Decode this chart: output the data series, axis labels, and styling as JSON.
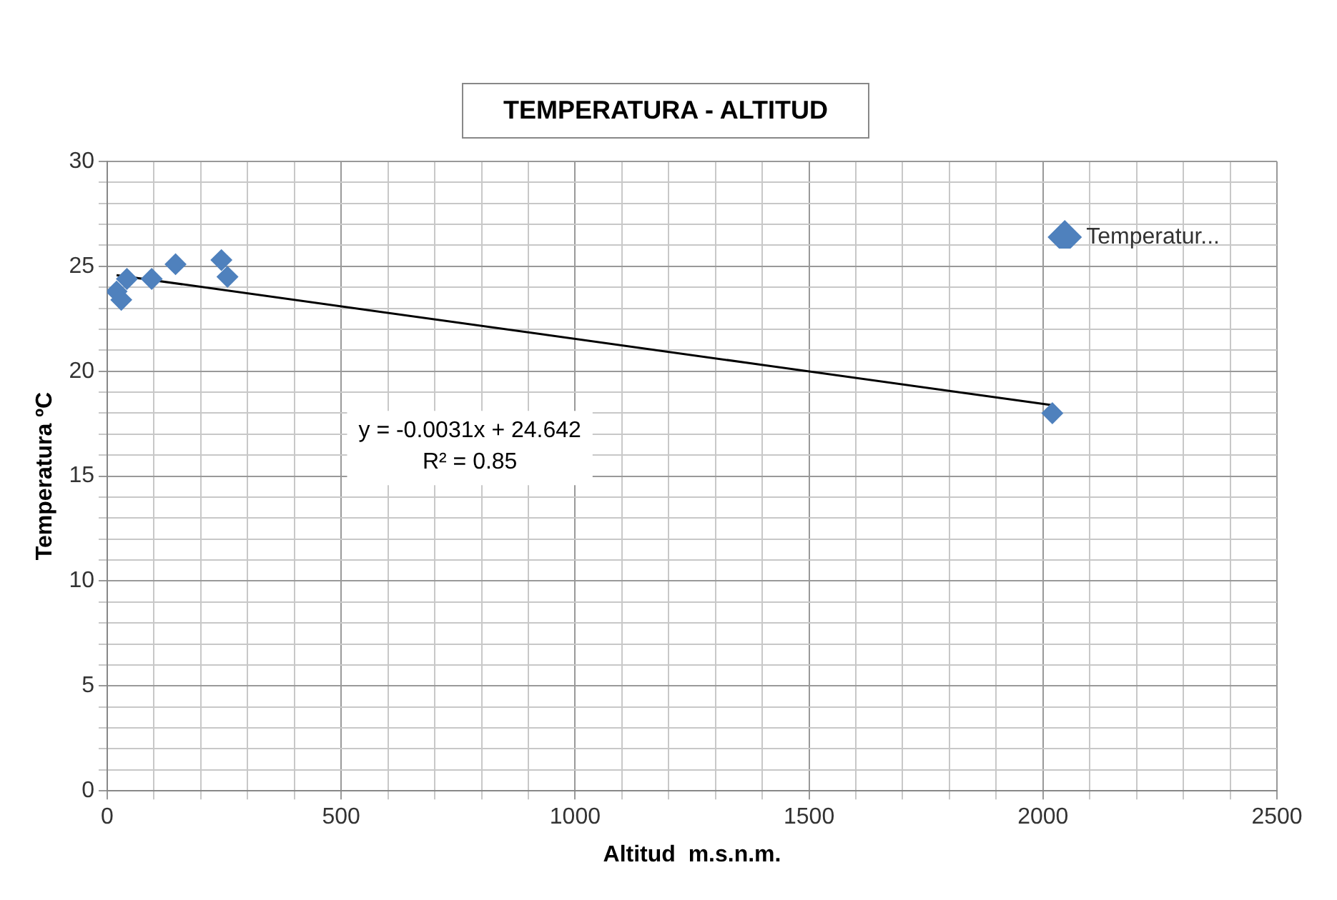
{
  "chart_data": {
    "type": "scatter",
    "title": "TEMPERATURA - ALTITUD",
    "xlabel": "Altitud  m.s.n.m.",
    "ylabel": "Temperatura ºC",
    "series": [
      {
        "name": "Temperatur...",
        "type": "scatter",
        "color": "#4f81bd",
        "x": [
          20,
          30,
          42,
          95,
          146,
          244,
          257,
          2020
        ],
        "values": [
          23.8,
          23.4,
          24.4,
          24.4,
          25.1,
          25.3,
          24.5,
          18.0
        ]
      },
      {
        "type": "line",
        "color": "#000000",
        "marker": "none",
        "x": [
          20,
          2020
        ],
        "values": [
          24.58,
          18.38
        ]
      }
    ],
    "annotations": [
      "y = -0.0031x + 24.642",
      "R² = 0.85"
    ],
    "xlim": [
      0,
      2500
    ],
    "ylim": [
      0,
      30
    ],
    "xticks": [
      0,
      {
        "value": 100,
        "label": null
      },
      {
        "value": 200,
        "label": null
      },
      {
        "value": 300,
        "label": null
      },
      {
        "value": 400,
        "label": null
      },
      500,
      {
        "value": 600,
        "label": null
      },
      {
        "value": 700,
        "label": null
      },
      {
        "value": 800,
        "label": null
      },
      {
        "value": 900,
        "label": null
      },
      1000,
      {
        "value": 1100,
        "label": null
      },
      {
        "value": 1200,
        "label": null
      },
      {
        "value": 1300,
        "label": null
      },
      {
        "value": 1400,
        "label": null
      },
      1500,
      {
        "value": 1600,
        "label": null
      },
      {
        "value": 1700,
        "label": null
      },
      {
        "value": 1800,
        "label": null
      },
      {
        "value": 1900,
        "label": null
      },
      2000,
      {
        "value": 2100,
        "label": null
      },
      {
        "value": 2200,
        "label": null
      },
      {
        "value": 2300,
        "label": null
      },
      {
        "value": 2400,
        "label": null
      },
      2500
    ],
    "yticks": [
      0,
      {
        "value": 1,
        "label": null
      },
      {
        "value": 2,
        "label": null
      },
      {
        "value": 3,
        "label": null
      },
      {
        "value": 4,
        "label": null
      },
      5,
      {
        "value": 6,
        "label": null
      },
      {
        "value": 7,
        "label": null
      },
      {
        "value": 8,
        "label": null
      },
      {
        "value": 9,
        "label": null
      },
      10,
      {
        "value": 11,
        "label": null
      },
      {
        "value": 12,
        "label": null
      },
      {
        "value": 13,
        "label": null
      },
      {
        "value": 14,
        "label": null
      },
      15,
      {
        "value": 16,
        "label": null
      },
      {
        "value": 17,
        "label": null
      },
      {
        "value": 18,
        "label": null
      },
      {
        "value": 19,
        "label": null
      },
      20,
      {
        "value": 21,
        "label": null
      },
      {
        "value": 22,
        "label": null
      },
      {
        "value": 23,
        "label": null
      },
      {
        "value": 24,
        "label": null
      },
      25,
      {
        "value": 26,
        "label": null
      },
      {
        "value": 27,
        "label": null
      },
      {
        "value": 28,
        "label": null
      },
      {
        "value": 29,
        "label": null
      },
      30
    ],
    "grid": true,
    "legend": "top right",
    "marker": "diamond"
  }
}
